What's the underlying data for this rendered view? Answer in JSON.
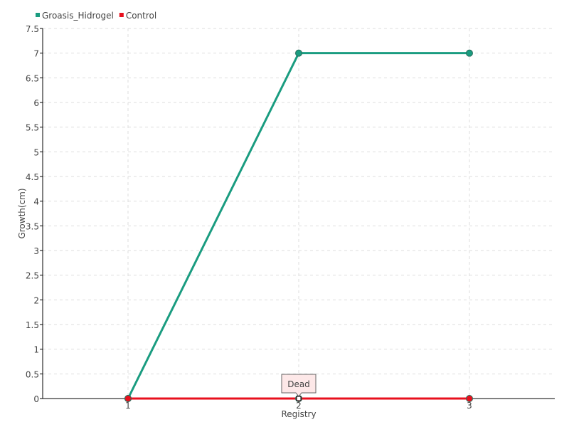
{
  "chart_data": {
    "type": "line",
    "xlabel": "Registry",
    "ylabel": "Growth(cm)",
    "x": [
      1,
      2,
      3
    ],
    "xticks": [
      "1",
      "2",
      "3"
    ],
    "xlim": [
      0.5,
      3.5
    ],
    "ylim": [
      0,
      7.5
    ],
    "yticks": [
      "0",
      "0.5",
      "1",
      "1.5",
      "2",
      "2.5",
      "3",
      "3.5",
      "4",
      "4.5",
      "5",
      "5.5",
      "6",
      "6.5",
      "7",
      "7.5"
    ],
    "grid": true,
    "legend_position": "top-left",
    "series": [
      {
        "name": "Groasis_Hidrogel",
        "values": [
          0,
          7,
          7
        ],
        "color": "#1a9c80"
      },
      {
        "name": "Control",
        "values": [
          0,
          0,
          0
        ],
        "color": "#e8101e"
      }
    ],
    "annotations": [
      {
        "x": 2,
        "y": 0,
        "text": "Dead"
      }
    ]
  }
}
